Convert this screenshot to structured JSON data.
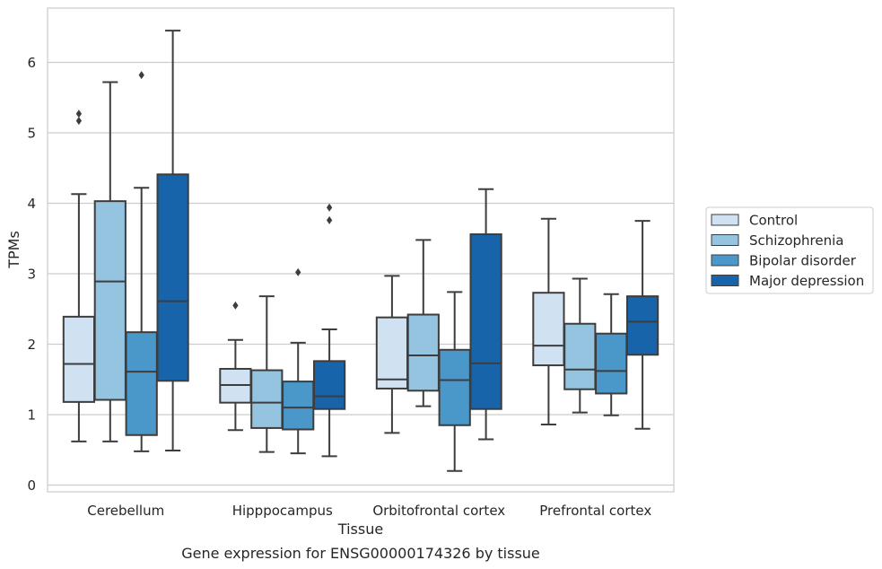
{
  "chart_data": {
    "type": "box",
    "title": "",
    "caption": "Gene expression for ENSG00000174326 by tissue",
    "xlabel": "Tissue",
    "ylabel": "TPMs",
    "ylim": [
      -0.1,
      6.75
    ],
    "yticks": [
      0,
      1,
      2,
      3,
      4,
      5,
      6
    ],
    "grid": "horizontal",
    "legend_position": "right",
    "categories": [
      "Cerebellum",
      "Hipppocampus",
      "Orbitofrontal cortex",
      "Prefrontal cortex"
    ],
    "series": [
      {
        "name": "Control",
        "color": "#d0e1f2",
        "boxes": [
          {
            "whislo": 0.62,
            "q1": 1.18,
            "med": 1.72,
            "q3": 2.39,
            "whishi": 4.13,
            "fliers": [
              5.17,
              5.27
            ]
          },
          {
            "whislo": 0.78,
            "q1": 1.17,
            "med": 1.42,
            "q3": 1.65,
            "whishi": 2.06,
            "fliers": [
              2.55
            ]
          },
          {
            "whislo": 0.74,
            "q1": 1.37,
            "med": 1.5,
            "q3": 2.38,
            "whishi": 2.97,
            "fliers": []
          },
          {
            "whislo": 0.86,
            "q1": 1.7,
            "med": 1.98,
            "q3": 2.73,
            "whishi": 3.78,
            "fliers": []
          }
        ]
      },
      {
        "name": "Schizophrenia",
        "color": "#94c4df",
        "boxes": [
          {
            "whislo": 0.62,
            "q1": 1.21,
            "med": 2.89,
            "q3": 4.03,
            "whishi": 5.72,
            "fliers": []
          },
          {
            "whislo": 0.47,
            "q1": 0.81,
            "med": 1.17,
            "q3": 1.63,
            "whishi": 2.68,
            "fliers": []
          },
          {
            "whislo": 1.12,
            "q1": 1.34,
            "med": 1.84,
            "q3": 2.42,
            "whishi": 3.48,
            "fliers": []
          },
          {
            "whislo": 1.03,
            "q1": 1.36,
            "med": 1.64,
            "q3": 2.29,
            "whishi": 2.93,
            "fliers": []
          }
        ]
      },
      {
        "name": "Bipolar disorder",
        "color": "#4a98c9",
        "boxes": [
          {
            "whislo": 0.48,
            "q1": 0.71,
            "med": 1.61,
            "q3": 2.17,
            "whishi": 4.22,
            "fliers": [
              5.82
            ]
          },
          {
            "whislo": 0.45,
            "q1": 0.79,
            "med": 1.1,
            "q3": 1.47,
            "whishi": 2.02,
            "fliers": [
              3.02
            ]
          },
          {
            "whislo": 0.2,
            "q1": 0.85,
            "med": 1.49,
            "q3": 1.92,
            "whishi": 2.74,
            "fliers": []
          },
          {
            "whislo": 0.99,
            "q1": 1.3,
            "med": 1.62,
            "q3": 2.15,
            "whishi": 2.71,
            "fliers": []
          }
        ]
      },
      {
        "name": "Major depression",
        "color": "#1764ab",
        "boxes": [
          {
            "whislo": 0.49,
            "q1": 1.48,
            "med": 2.61,
            "q3": 4.41,
            "whishi": 6.45,
            "fliers": []
          },
          {
            "whislo": 0.41,
            "q1": 1.08,
            "med": 1.26,
            "q3": 1.76,
            "whishi": 2.21,
            "fliers": [
              3.76,
              3.94
            ]
          },
          {
            "whislo": 0.65,
            "q1": 1.08,
            "med": 1.73,
            "q3": 3.56,
            "whishi": 4.2,
            "fliers": []
          },
          {
            "whislo": 0.8,
            "q1": 1.85,
            "med": 2.32,
            "q3": 2.68,
            "whishi": 3.75,
            "fliers": []
          }
        ]
      }
    ]
  }
}
